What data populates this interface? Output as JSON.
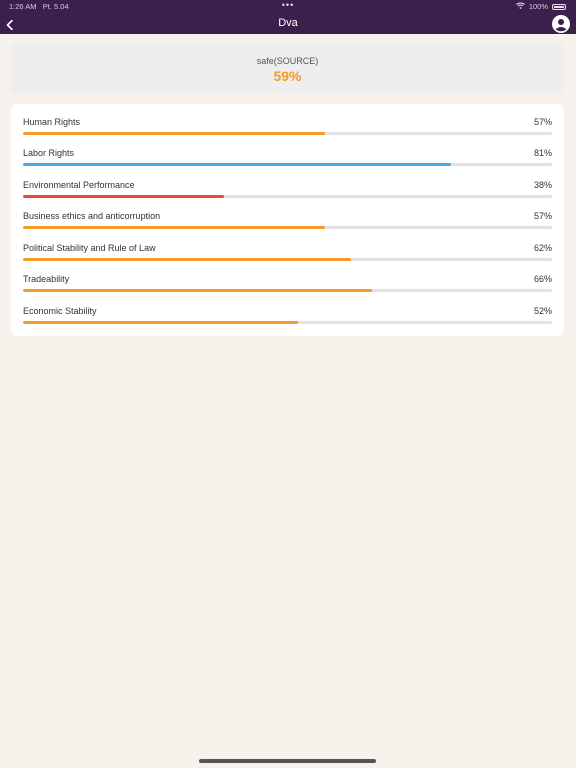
{
  "status": {
    "time": "1:26 AM",
    "date": "Pt. 5.04",
    "dots": "•••",
    "battery": "100%"
  },
  "nav": {
    "title": "Dva"
  },
  "source": {
    "label": "safe(SOURCE)",
    "score": "59%"
  },
  "metrics": [
    {
      "label": "Human Rights",
      "value": "57%",
      "fraction": 0.57,
      "color": "#f39a2b"
    },
    {
      "label": "Labor Rights",
      "value": "81%",
      "fraction": 0.81,
      "color": "#4aa8e0"
    },
    {
      "label": "Environmental Performance",
      "value": "38%",
      "fraction": 0.38,
      "color": "#e94a33"
    },
    {
      "label": "Business ethics and anticorruption",
      "value": "57%",
      "fraction": 0.57,
      "color": "#f39a2b"
    },
    {
      "label": "Political Stability and Rule of Law",
      "value": "62%",
      "fraction": 0.62,
      "color": "#f39a2b"
    },
    {
      "label": "Tradeability",
      "value": "66%",
      "fraction": 0.66,
      "color": "#f39a2b"
    },
    {
      "label": "Economic Stability",
      "value": "52%",
      "fraction": 0.52,
      "color": "#f39a2b"
    }
  ],
  "icons": {
    "back": "chevron-left-icon",
    "avatar": "user-circle-icon",
    "wifi": "wifi-icon",
    "battery": "battery-icon"
  }
}
